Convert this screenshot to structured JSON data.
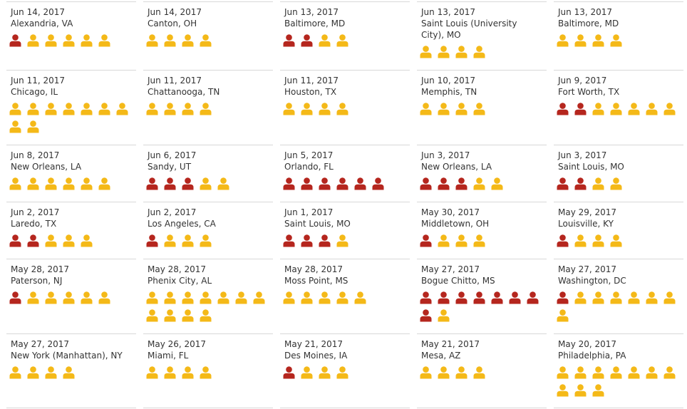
{
  "colors": {
    "killed": "#b5261e",
    "injured": "#f4b918",
    "rule": "#d8d8d8"
  },
  "icon": "person-icon",
  "incidents": [
    {
      "date": "Jun 14, 2017",
      "location": "Alexandria, VA",
      "killed": 1,
      "injured": 5
    },
    {
      "date": "Jun 14, 2017",
      "location": "Canton, OH",
      "killed": 0,
      "injured": 4
    },
    {
      "date": "Jun 13, 2017",
      "location": "Baltimore, MD",
      "killed": 2,
      "injured": 2
    },
    {
      "date": "Jun 13, 2017",
      "location": "Saint Louis (University City), MO",
      "killed": 0,
      "injured": 4
    },
    {
      "date": "Jun 13, 2017",
      "location": "Baltimore, MD",
      "killed": 0,
      "injured": 4
    },
    {
      "date": "Jun 11, 2017",
      "location": "Chicago, IL",
      "killed": 0,
      "injured": 9
    },
    {
      "date": "Jun 11, 2017",
      "location": "Chattanooga, TN",
      "killed": 0,
      "injured": 4
    },
    {
      "date": "Jun 11, 2017",
      "location": "Houston, TX",
      "killed": 0,
      "injured": 4
    },
    {
      "date": "Jun 10, 2017",
      "location": "Memphis, TN",
      "killed": 0,
      "injured": 4
    },
    {
      "date": "Jun 9, 2017",
      "location": "Fort Worth, TX",
      "killed": 2,
      "injured": 5
    },
    {
      "date": "Jun 8, 2017",
      "location": "New Orleans, LA",
      "killed": 0,
      "injured": 6
    },
    {
      "date": "Jun 6, 2017",
      "location": "Sandy, UT",
      "killed": 3,
      "injured": 2
    },
    {
      "date": "Jun 5, 2017",
      "location": "Orlando, FL",
      "killed": 6,
      "injured": 0
    },
    {
      "date": "Jun 3, 2017",
      "location": "New Orleans, LA",
      "killed": 3,
      "injured": 2
    },
    {
      "date": "Jun 3, 2017",
      "location": "Saint Louis, MO",
      "killed": 2,
      "injured": 2
    },
    {
      "date": "Jun 2, 2017",
      "location": "Laredo, TX",
      "killed": 2,
      "injured": 3
    },
    {
      "date": "Jun 2, 2017",
      "location": "Los Angeles, CA",
      "killed": 1,
      "injured": 3
    },
    {
      "date": "Jun 1, 2017",
      "location": "Saint Louis, MO",
      "killed": 3,
      "injured": 1
    },
    {
      "date": "May 30, 2017",
      "location": "Middletown, OH",
      "killed": 1,
      "injured": 3
    },
    {
      "date": "May 29, 2017",
      "location": "Louisville, KY",
      "killed": 1,
      "injured": 3
    },
    {
      "date": "May 28, 2017",
      "location": "Paterson, NJ",
      "killed": 1,
      "injured": 5
    },
    {
      "date": "May 28, 2017",
      "location": "Phenix City, AL",
      "killed": 0,
      "injured": 11
    },
    {
      "date": "May 28, 2017",
      "location": "Moss Point, MS",
      "killed": 0,
      "injured": 5
    },
    {
      "date": "May 27, 2017",
      "location": "Bogue Chitto, MS",
      "killed": 8,
      "injured": 1
    },
    {
      "date": "May 27, 2017",
      "location": "Washington, DC",
      "killed": 1,
      "injured": 7
    },
    {
      "date": "May 27, 2017",
      "location": "New York (Manhattan), NY",
      "killed": 0,
      "injured": 4
    },
    {
      "date": "May 26, 2017",
      "location": "Miami, FL",
      "killed": 0,
      "injured": 4
    },
    {
      "date": "May 21, 2017",
      "location": "Des Moines, IA",
      "killed": 1,
      "injured": 3
    },
    {
      "date": "May 21, 2017",
      "location": "Mesa, AZ",
      "killed": 0,
      "injured": 4
    },
    {
      "date": "May 20, 2017",
      "location": "Philadelphia, PA",
      "killed": 0,
      "injured": 10
    }
  ]
}
